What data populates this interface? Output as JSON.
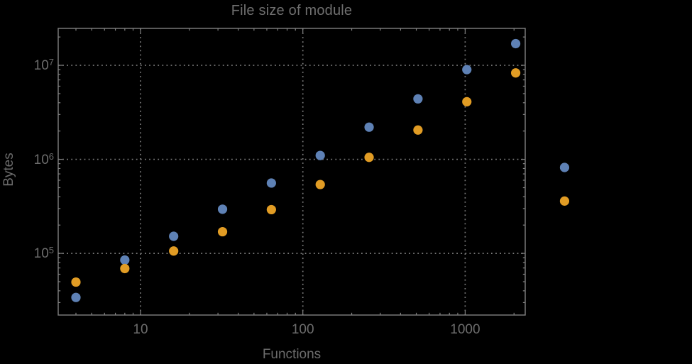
{
  "figure": {
    "background": "#000000",
    "text_color": "#6c6c6c",
    "frame_color": "#818181",
    "grid_color": "#7b7b7b"
  },
  "chart_data": {
    "type": "scatter",
    "title": "File size of module",
    "xlabel": "Functions",
    "ylabel": "Bytes",
    "xscale": "log",
    "yscale": "log",
    "grid": true,
    "legend": "none",
    "xlim": [
      3.11,
      2344
    ],
    "ylim": [
      22100,
      24700000
    ],
    "x": [
      4,
      8,
      16,
      32,
      64,
      128,
      256,
      512,
      1024,
      2048,
      4096
    ],
    "series": [
      {
        "name": "series-blue",
        "color": "#5E81B5",
        "values": [
          34000,
          85000,
          152000,
          295000,
          560000,
          1100000,
          2200000,
          4400000,
          9000000,
          17000000,
          820000
        ]
      },
      {
        "name": "series-orange",
        "color": "#E19C24",
        "values": [
          49500,
          69000,
          106000,
          170000,
          292000,
          540000,
          1050000,
          2050000,
          4100000,
          8300000,
          360000
        ]
      }
    ],
    "xticks": [
      {
        "v": 10,
        "label": "10"
      },
      {
        "v": 100,
        "label": "100"
      },
      {
        "v": 1000,
        "label": "1000"
      }
    ],
    "yticks": [
      {
        "v": 100000,
        "base": "10",
        "exp": "5"
      },
      {
        "v": 1000000,
        "base": "10",
        "exp": "6"
      },
      {
        "v": 10000000,
        "base": "10",
        "exp": "7"
      }
    ]
  }
}
